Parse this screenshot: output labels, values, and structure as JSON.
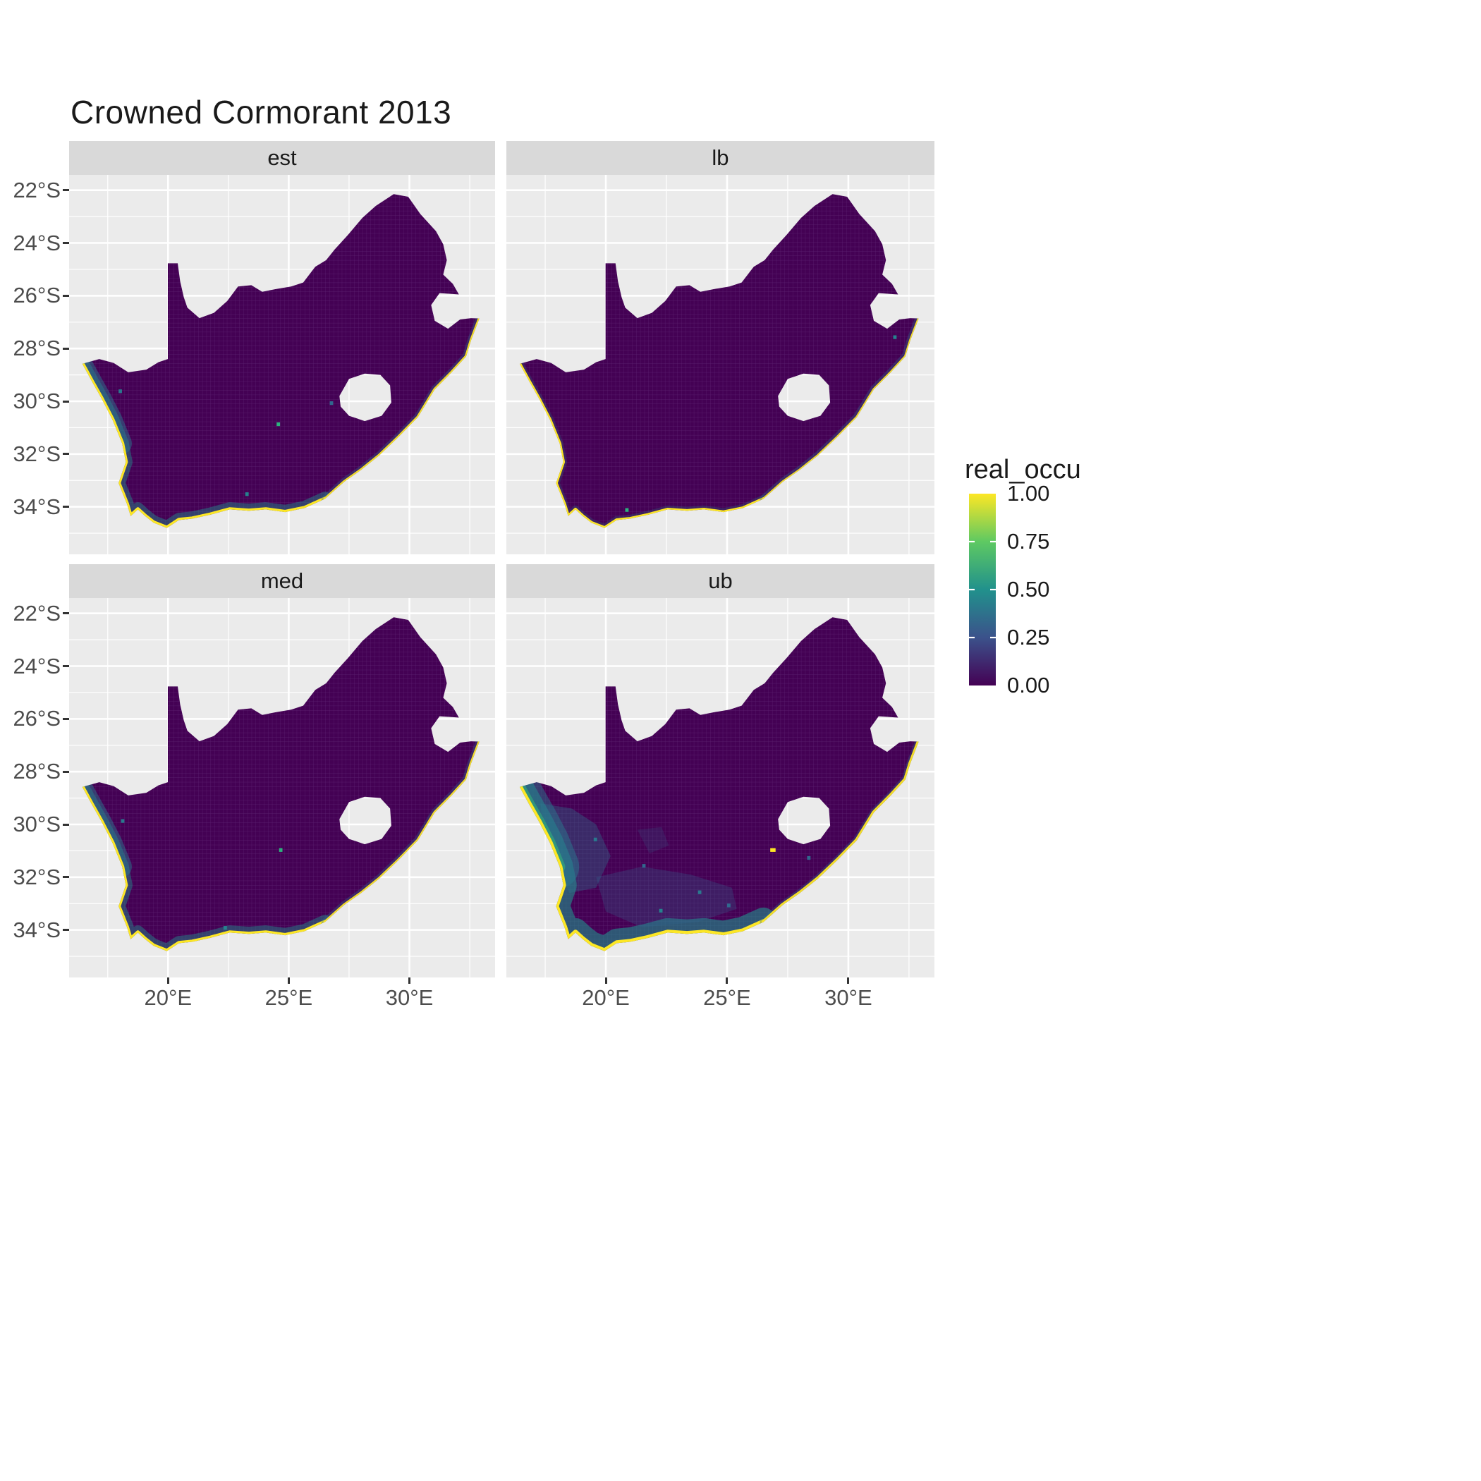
{
  "title": "Crowned Cormorant 2013",
  "facets": [
    {
      "label": "est"
    },
    {
      "label": "lb"
    },
    {
      "label": "med"
    },
    {
      "label": "ub"
    }
  ],
  "axes": {
    "y_ticks": [
      {
        "label": "22°S",
        "value": 22
      },
      {
        "label": "24°S",
        "value": 24
      },
      {
        "label": "26°S",
        "value": 26
      },
      {
        "label": "28°S",
        "value": 28
      },
      {
        "label": "30°S",
        "value": 30
      },
      {
        "label": "32°S",
        "value": 32
      },
      {
        "label": "34°S",
        "value": 34
      }
    ],
    "x_ticks": [
      {
        "label": "20°E",
        "value": 20
      },
      {
        "label": "25°E",
        "value": 25
      },
      {
        "label": "30°E",
        "value": 30
      }
    ]
  },
  "legend": {
    "title": "real_occu",
    "ticks": [
      {
        "label": "1.00",
        "value": 1.0
      },
      {
        "label": "0.75",
        "value": 0.75
      },
      {
        "label": "0.50",
        "value": 0.5
      },
      {
        "label": "0.25",
        "value": 0.25
      },
      {
        "label": "0.00",
        "value": 0.0
      }
    ]
  },
  "colors": {
    "background": "#FFFFFF",
    "panel_bg": "#EBEBEB",
    "strip_bg": "#D9D9D9",
    "grid": "#FFFFFF",
    "axis_text": "#4D4D4D",
    "occu_min": "#440154",
    "occu_mid": "#21918C",
    "occu_max": "#FDE725",
    "viridis": [
      "#440154",
      "#3B528B",
      "#21918C",
      "#5EC962",
      "#FDE725"
    ]
  },
  "chart_data": {
    "type": "heatmap",
    "title": "Crowned Cormorant 2013",
    "variable": "real_occu",
    "palette": "viridis",
    "value_range": [
      0.0,
      1.0
    ],
    "legend_ticks": [
      1.0,
      0.75,
      0.5,
      0.25,
      0.0
    ],
    "region": "South Africa (raster grid, Lesotho shown as hole)",
    "facets": [
      "est",
      "lb",
      "med",
      "ub"
    ],
    "x_axis": {
      "label": "",
      "tick_labels": [
        "20°E",
        "25°E",
        "30°E"
      ],
      "range_deg_east": [
        15.9,
        33.55
      ]
    },
    "y_axis": {
      "label": "",
      "tick_labels": [
        "22°S",
        "24°S",
        "26°S",
        "28°S",
        "30°S",
        "32°S",
        "34°S"
      ],
      "range_deg_south": [
        21.4,
        35.8
      ]
    },
    "facet_summaries": {
      "est": "Estimated occupancy ~0 (dark purple) across nearly all of the interior; values approaching 1 (yellow) in a narrow fringe along the west and south coasts, with teal (~0.3-0.5) haze just inland of the northwest coast and a few isolated teal cells inland.",
      "lb": "Lower bound: ~0 everywhere except a very thin yellow/teal fringe on the southern and western coastline.",
      "med": "Median: similar to the estimate; interior ~0 with a coastal band up to 1 on the west and south coasts and scattered single teal cells inland.",
      "ub": "Upper bound: broad elevated values (~0.2-0.6, blue-teal) across the west coast and southwestern interior, strong yellow (~1) coastal fringe along the west and south coasts, plus a small yellow patch near 27°E 31°S."
    }
  }
}
